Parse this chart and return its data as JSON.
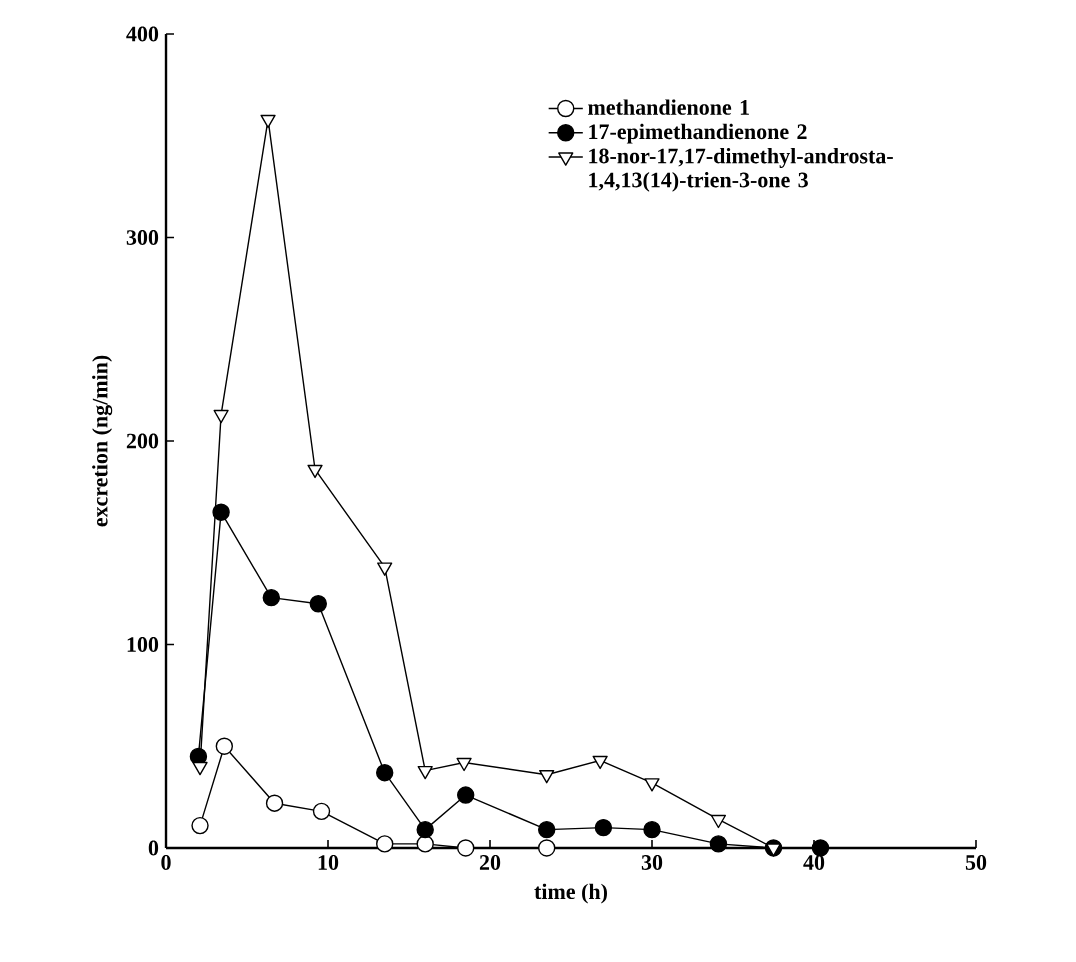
{
  "chart_data": {
    "type": "line",
    "xlabel": "time (h)",
    "ylabel": "excretion (ng/min)",
    "xlim": [
      0,
      50
    ],
    "ylim": [
      0,
      400
    ],
    "xticks": [
      0,
      10,
      20,
      30,
      40,
      50
    ],
    "yticks": [
      0,
      100,
      200,
      300,
      400
    ],
    "legend": "top right",
    "grid": false,
    "series": [
      {
        "name": "methandienone 1",
        "color": "#000000",
        "marker": "circle",
        "x": [
          2.1,
          3.6,
          6.7,
          9.6,
          13.5,
          16,
          18.5,
          23.5
        ],
        "values": [
          11,
          50,
          22,
          18,
          2,
          2,
          0,
          0
        ]
      },
      {
        "name": "17-epimethandienone 2",
        "color": "#000000",
        "marker": "circle",
        "x": [
          2,
          3.4,
          6.5,
          9.4,
          13.5,
          16,
          18.5,
          23.5,
          27,
          30,
          34.1,
          37.5,
          40.4
        ],
        "values": [
          45,
          165,
          123,
          120,
          37,
          9,
          26,
          9,
          10,
          9,
          2,
          0,
          0
        ]
      },
      {
        "name": "18-nor-17,17-dimethyl-androsta-1,4,13(14)-trien-3-one 3",
        "color": "#000000",
        "marker": "triangle",
        "x": [
          2.1,
          3.4,
          6.3,
          9.2,
          13.5,
          16,
          18.4,
          23.5,
          26.8,
          30,
          34.1,
          37.5
        ],
        "values": [
          40,
          213,
          358,
          186,
          138,
          38,
          42,
          36,
          43,
          32,
          14,
          0
        ]
      }
    ]
  }
}
